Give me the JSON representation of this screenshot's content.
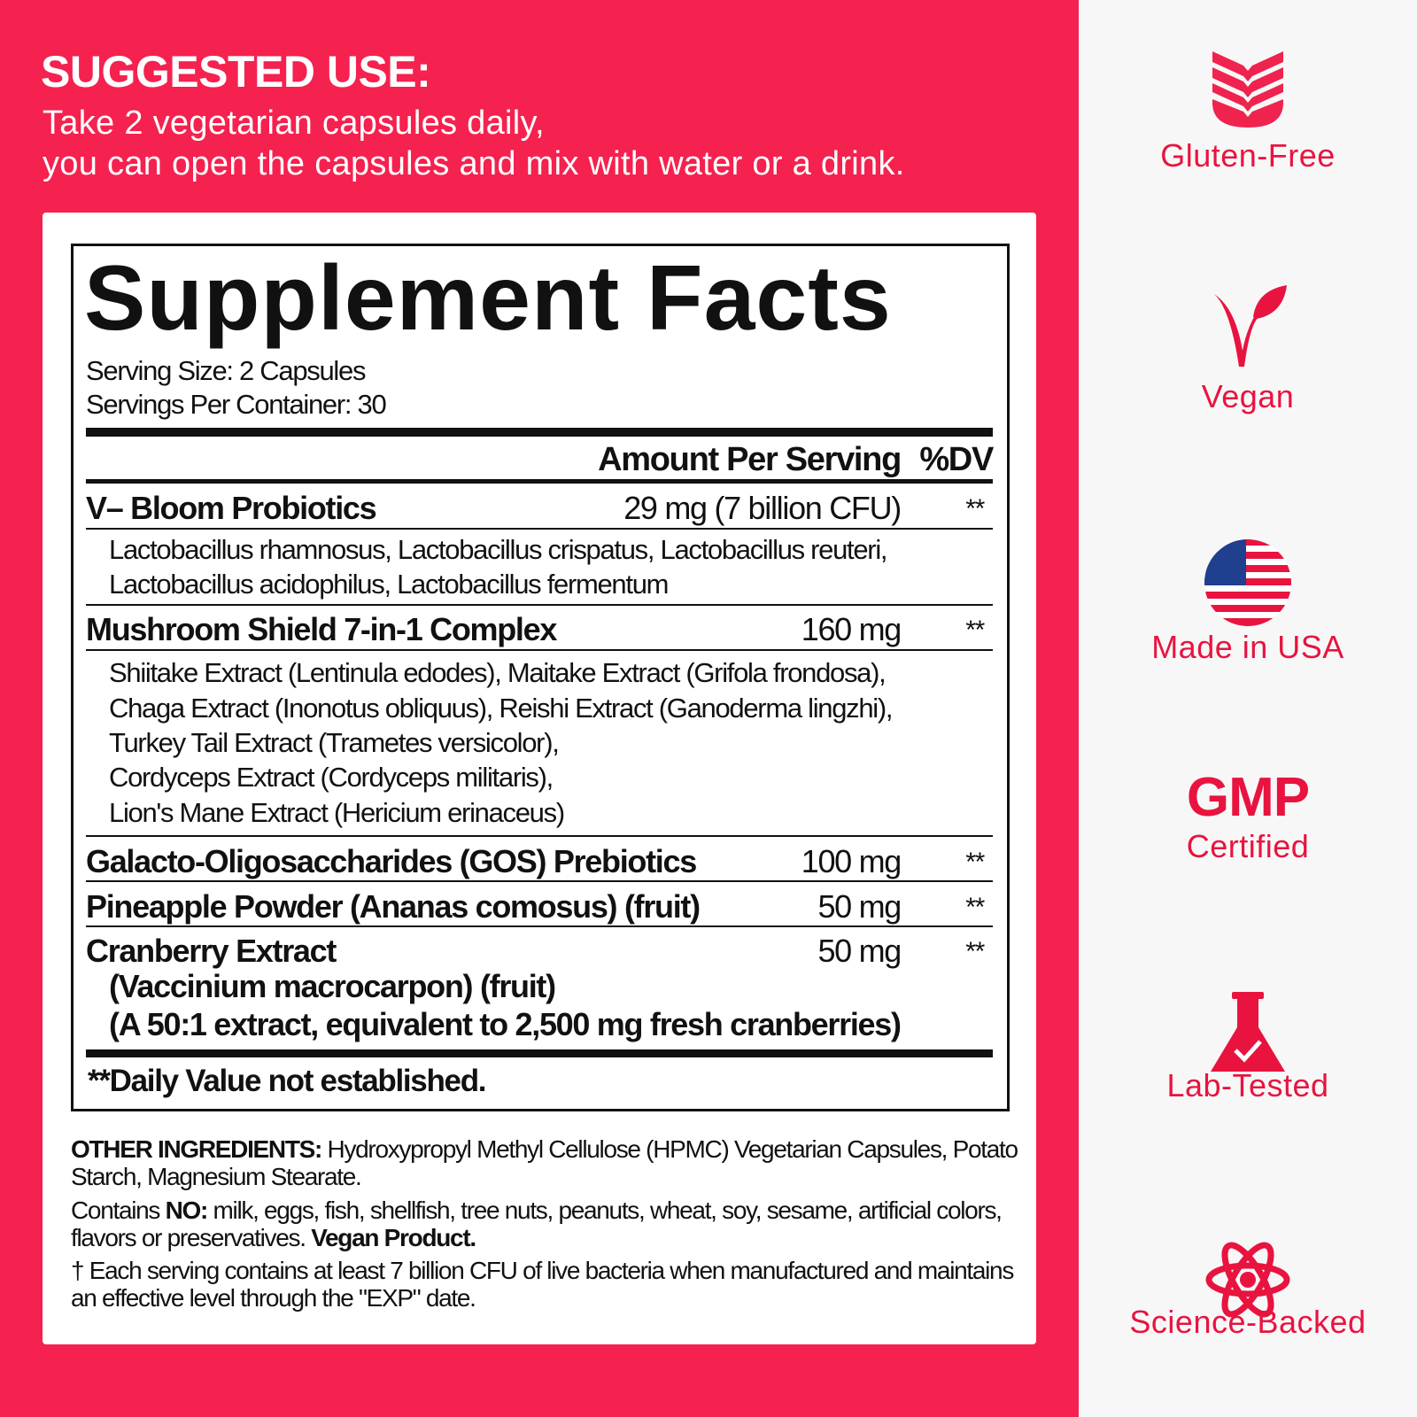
{
  "suggested_use": {
    "heading": "SUGGESTED USE:",
    "line1": "Take 2 vegetarian capsules daily,",
    "line2": "you can open the capsules and mix with water or a drink."
  },
  "facts": {
    "title": "Supplement Facts",
    "serving_size": "Serving Size:  2  Capsules",
    "servings_per_container": "Servings Per Container:  30",
    "header_amount": "Amount Per Serving",
    "header_dv": "%DV",
    "rows": [
      {
        "name": "V– Bloom Probiotics",
        "amount": "29 mg (7 billion CFU)",
        "dv": "**",
        "details": [
          "Lactobacillus rhamnosus, Lactobacillus crispatus, Lactobacillus reuteri,",
          "Lactobacillus acidophilus, Lactobacillus fermentum"
        ]
      },
      {
        "name": "Mushroom Shield 7-in-1 Complex",
        "amount": "160 mg",
        "dv": "**",
        "details": [
          "Shiitake Extract (Lentinula edodes), Maitake Extract (Grifola frondosa),",
          "Chaga Extract (Inonotus obliquus), Reishi Extract (Ganoderma lingzhi),",
          "Turkey Tail Extract (Trametes versicolor),",
          "Cordyceps Extract (Cordyceps militaris),",
          "Lion's Mane Extract (Hericium erinaceus)"
        ]
      },
      {
        "name": "Galacto-Oligosaccharides (GOS) Prebiotics",
        "amount": "100 mg",
        "dv": "**"
      },
      {
        "name": "Pineapple Powder (Ananas comosus) (fruit)",
        "amount": "50 mg",
        "dv": "**"
      },
      {
        "name": "Cranberry Extract",
        "amount": "50 mg",
        "dv": "**",
        "details": [
          "(Vaccinium macrocarpon) (fruit)",
          "(A 50:1 extract, equivalent to 2,500 mg fresh cranberries)"
        ]
      }
    ],
    "footnote": "**Daily Value not established."
  },
  "other": {
    "label": "OTHER INGREDIENTS:",
    "text": " Hydroxypropyl Methyl Cellulose (HPMC) Vegetarian Capsules, Potato Starch, Magnesium Stearate.",
    "contains_pre": "Contains ",
    "contains_no": "NO:",
    "contains_text": " milk, eggs, fish, shellfish, tree nuts, peanuts, wheat, soy, sesame, artificial colors, flavors or preservatives. ",
    "vegan": "Vegan Product.",
    "dagger": "† Each serving contains at least 7 billion CFU of live bacteria when manufactured and maintains an effective level through the \"EXP\" date."
  },
  "badges": [
    {
      "label": "Gluten-Free",
      "icon": "wheat-icon"
    },
    {
      "label": "Vegan",
      "icon": "vegan-leaf-icon"
    },
    {
      "label": "Made in USA",
      "icon": "us-flag-icon"
    },
    {
      "label": "GMP",
      "label2": "Certified",
      "icon": "none"
    },
    {
      "label": "Lab-Tested",
      "icon": "flask-icon"
    },
    {
      "label": "Science-Backed",
      "icon": "atom-icon"
    }
  ],
  "colors": {
    "brand_red": "#f5214f",
    "badge_red": "#e8143f",
    "text": "#111111"
  }
}
